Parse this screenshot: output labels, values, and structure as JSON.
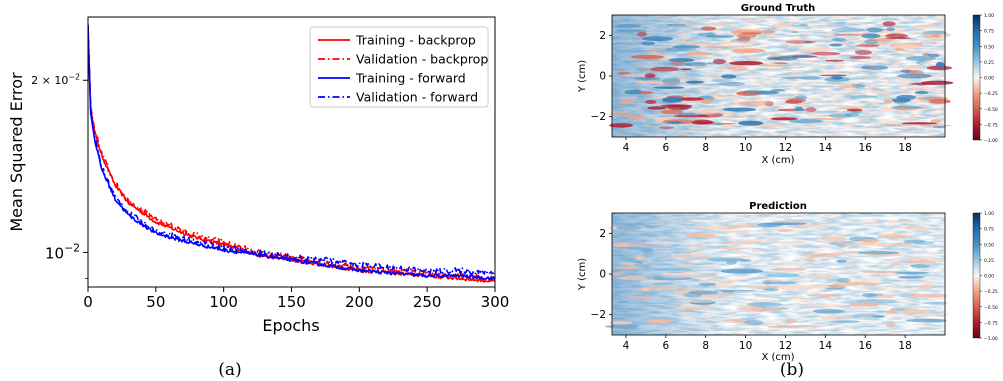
{
  "panels": {
    "a_caption": "(a)",
    "b_caption": "(b)"
  },
  "chart_data": [
    {
      "type": "line",
      "xlabel": "Epochs",
      "ylabel": "Mean Squared Error",
      "xlim": [
        0,
        300
      ],
      "ylim": [
        0.0087,
        0.0258
      ],
      "yscale": "log",
      "x_ticks": [
        "0",
        "50",
        "100",
        "150",
        "200",
        "250",
        "300"
      ],
      "y_ticks": [
        "10^{-2}",
        "2 × 10^{-2}"
      ],
      "legend_position": "top-right",
      "grid": false,
      "series": [
        {
          "name": "Training - backprop",
          "color": "#ff0000",
          "style": "solid",
          "x": [
            0,
            2,
            5,
            10,
            20,
            30,
            50,
            75,
            100,
            125,
            150,
            175,
            200,
            225,
            250,
            275,
            300
          ],
          "y": [
            0.024,
            0.0178,
            0.0162,
            0.0148,
            0.0131,
            0.0122,
            0.0113,
            0.0107,
            0.0103,
            0.0099,
            0.0097,
            0.0095,
            0.0093,
            0.0092,
            0.0091,
            0.009,
            0.0089
          ]
        },
        {
          "name": "Validation - backprop",
          "color": "#ff0000",
          "style": "dashdot",
          "x": [
            0,
            2,
            5,
            10,
            20,
            30,
            50,
            75,
            100,
            125,
            150,
            175,
            200,
            225,
            250,
            275,
            300
          ],
          "y": [
            0.024,
            0.018,
            0.0163,
            0.0149,
            0.0132,
            0.0123,
            0.0114,
            0.0108,
            0.0104,
            0.01,
            0.0098,
            0.0096,
            0.0094,
            0.0093,
            0.0092,
            0.0091,
            0.009
          ]
        },
        {
          "name": "Training - forward",
          "color": "#0000ff",
          "style": "solid",
          "x": [
            0,
            2,
            5,
            10,
            20,
            30,
            50,
            75,
            100,
            125,
            150,
            175,
            200,
            225,
            250,
            275,
            300
          ],
          "y": [
            0.025,
            0.0175,
            0.0157,
            0.014,
            0.0124,
            0.0116,
            0.0108,
            0.0104,
            0.0101,
            0.0099,
            0.0097,
            0.0095,
            0.0093,
            0.0092,
            0.0091,
            0.0091,
            0.009
          ]
        },
        {
          "name": "Validation - forward",
          "color": "#0000ff",
          "style": "dashdot",
          "x": [
            0,
            2,
            5,
            10,
            20,
            30,
            50,
            75,
            100,
            125,
            150,
            175,
            200,
            225,
            250,
            275,
            300
          ],
          "y": [
            0.025,
            0.0177,
            0.0158,
            0.0141,
            0.0125,
            0.0117,
            0.0109,
            0.0105,
            0.0102,
            0.01,
            0.0098,
            0.0097,
            0.0095,
            0.0094,
            0.0093,
            0.0093,
            0.0092
          ]
        }
      ]
    },
    {
      "type": "heatmap",
      "title": "Ground Truth",
      "xlabel": "X (cm)",
      "ylabel": "Y (cm)",
      "xlim": [
        3.3,
        20
      ],
      "ylim": [
        -3,
        3
      ],
      "x_ticks": [
        "4",
        "6",
        "8",
        "10",
        "12",
        "14",
        "16",
        "18"
      ],
      "y_ticks": [
        "2",
        "0",
        "−2"
      ],
      "colorbar_range": [
        -1,
        1
      ],
      "colorbar_ticks": [
        "1.00",
        "0.75",
        "0.50",
        "0.25",
        "0.00",
        "−0.25",
        "−0.50",
        "−0.75",
        "−1.00"
      ],
      "colormap": "RdBu"
    },
    {
      "type": "heatmap",
      "title": "Prediction",
      "xlabel": "X (cm)",
      "ylabel": "Y (cm)",
      "xlim": [
        3.3,
        20
      ],
      "ylim": [
        -3,
        3
      ],
      "x_ticks": [
        "4",
        "6",
        "8",
        "10",
        "12",
        "14",
        "16",
        "18"
      ],
      "y_ticks": [
        "2",
        "0",
        "−2"
      ],
      "colorbar_range": [
        -1,
        1
      ],
      "colorbar_ticks": [
        "1.00",
        "0.75",
        "0.50",
        "0.25",
        "0.00",
        "−0.25",
        "−0.50",
        "−0.75",
        "−1.00"
      ],
      "colormap": "RdBu"
    }
  ]
}
